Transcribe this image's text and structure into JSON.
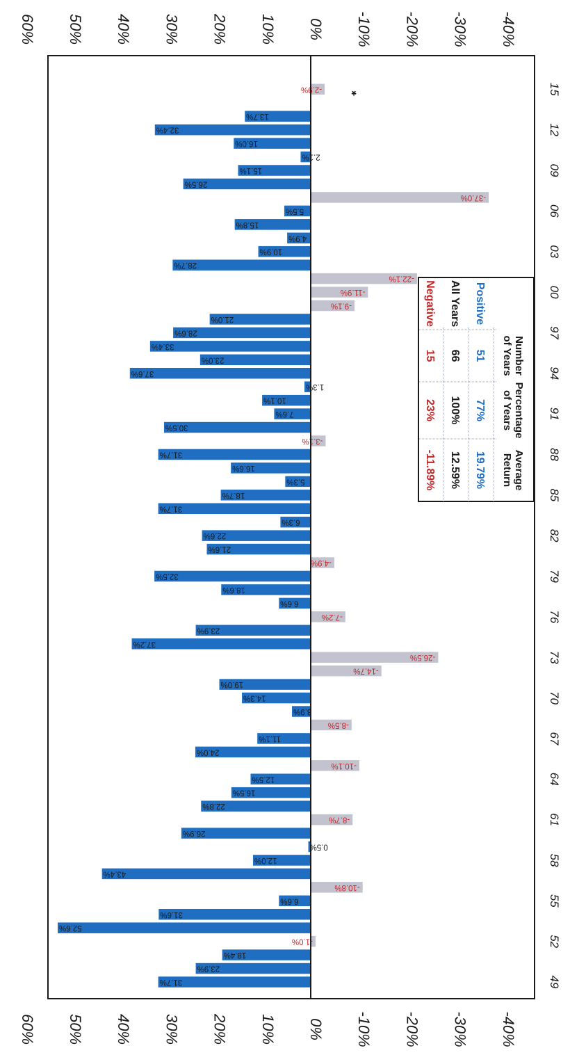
{
  "chart_data": {
    "type": "bar",
    "orientation": "rotated",
    "value_axis_ticks": [
      "60%",
      "50%",
      "40%",
      "30%",
      "20%",
      "10%",
      "0%",
      "-10%",
      "-20%",
      "-30%",
      "-40%"
    ],
    "ylim": [
      -40,
      60
    ],
    "category_ticks": [
      "49",
      "52",
      "55",
      "58",
      "61",
      "64",
      "67",
      "70",
      "73",
      "76",
      "79",
      "82",
      "85",
      "88",
      "91",
      "94",
      "97",
      "00",
      "03",
      "06",
      "09",
      "12",
      "15"
    ],
    "years": [
      1949,
      1950,
      1951,
      1952,
      1953,
      1954,
      1955,
      1956,
      1957,
      1958,
      1959,
      1960,
      1961,
      1962,
      1963,
      1964,
      1965,
      1966,
      1967,
      1968,
      1969,
      1970,
      1971,
      1972,
      1973,
      1974,
      1975,
      1976,
      1977,
      1978,
      1979,
      1980,
      1981,
      1982,
      1983,
      1984,
      1985,
      1986,
      1987,
      1988,
      1989,
      1990,
      1991,
      1992,
      1993,
      1994,
      1995,
      1996,
      1997,
      1998,
      1999,
      2000,
      2001,
      2002,
      2003,
      2004,
      2005,
      2006,
      2007,
      2008,
      2009,
      2010,
      2011,
      2012,
      2013,
      2014,
      2015
    ],
    "values": [
      31.7,
      23.9,
      18.4,
      -1.0,
      52.6,
      31.6,
      6.6,
      -10.8,
      43.4,
      12.0,
      0.5,
      26.9,
      -8.7,
      22.8,
      16.5,
      12.5,
      -10.1,
      24.0,
      11.1,
      -8.5,
      3.9,
      14.3,
      19.0,
      -14.7,
      -26.5,
      37.2,
      23.9,
      -7.2,
      6.6,
      18.6,
      32.5,
      -4.9,
      21.6,
      22.6,
      6.3,
      31.7,
      18.7,
      5.3,
      16.6,
      31.7,
      -3.1,
      30.5,
      7.6,
      10.1,
      1.3,
      37.6,
      23.0,
      33.4,
      28.6,
      21.0,
      -9.1,
      -11.9,
      -22.1,
      28.7,
      10.9,
      4.9,
      15.8,
      5.5,
      -37.0,
      26.5,
      15.1,
      2.1,
      16.0,
      32.4,
      13.7,
      null,
      -2.9
    ],
    "labels": [
      "31.7%",
      "23.9%",
      "18.4%",
      "-1.0%",
      "52.6%",
      "31.6%",
      "6.6%",
      "-10.8%",
      "43.4%",
      "12.0%",
      "0.5%",
      "26.9%",
      "-8.7%",
      "22.8%",
      "16.5%",
      "12.5%",
      "-10.1%",
      "24.0%",
      "11.1%",
      "-8.5%",
      "3.9%",
      "14.3%",
      "19.0%",
      "-14.7%",
      "-26.5%",
      "37.2%",
      "23.9%",
      "-7.2%",
      "6.6%",
      "18.6%",
      "32.5%",
      "-4.9%",
      "21.6%",
      "22.6%",
      "6.3%",
      "31.7%",
      "18.7%",
      "5.3%",
      "16.6%",
      "31.7%",
      "-3.1%",
      "30.5%",
      "7.6%",
      "10.1%",
      "1.3%",
      "37.6%",
      "23.0%",
      "33.4%",
      "28.6%",
      "21.0%",
      "-9.1%",
      "-11.9%",
      "-22.1%",
      "28.7%",
      "10.9%",
      "4.9%",
      "15.8%",
      "5.5%",
      "-37.0%",
      "26.5%",
      "15.1%",
      "2.1%",
      "16.0%",
      "32.4%",
      "13.7%",
      "",
      "-2.9%"
    ],
    "annotation": "*",
    "grid": false,
    "colors": {
      "positive": "#1f6ec2",
      "negative": "#c3c3cf",
      "negative_text": "#c0282a"
    }
  },
  "summary_table": {
    "headers": [
      "",
      "Number of Years",
      "Percentage of Years",
      "Average Return"
    ],
    "rows": [
      {
        "label": "Positive",
        "count": "51",
        "percent": "77%",
        "average": "19.79%",
        "color": "#1f6ec2"
      },
      {
        "label": "All Years",
        "count": "66",
        "percent": "100%",
        "average": "12.59%",
        "color": "#1a1a1a"
      },
      {
        "label": "Negative",
        "count": "15",
        "percent": "23%",
        "average": "-11.89%",
        "color": "#c0282a"
      }
    ]
  }
}
